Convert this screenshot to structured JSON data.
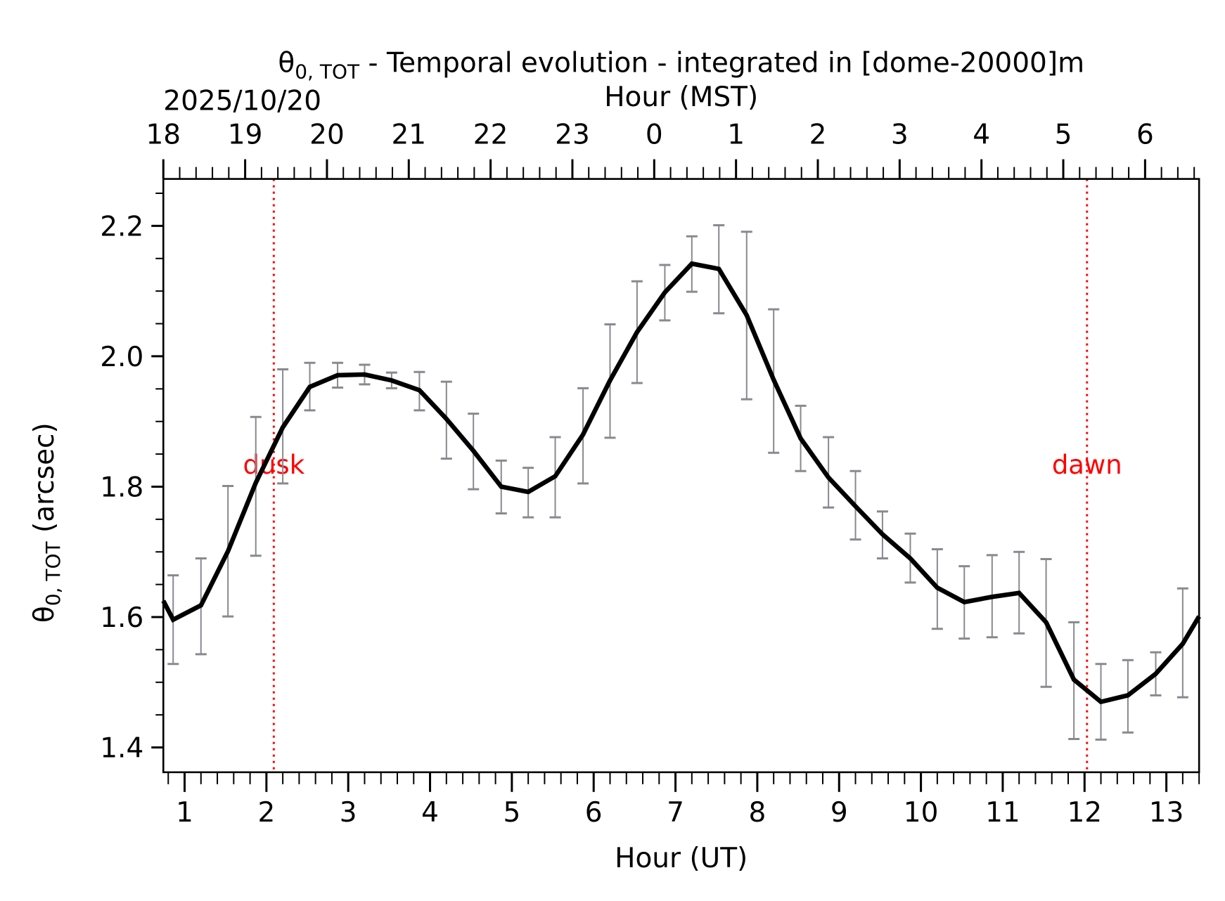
{
  "chart_data": {
    "type": "line",
    "title": "θ0,TOT - Temporal evolution - integrated in [dome-20000]m",
    "title_symbol": "θ",
    "title_subscript": "0, TOT",
    "title_rest": " - Temporal evolution - integrated in [dome-20000]m",
    "date_label": "2025/10/20",
    "xlabel": "Hour (UT)",
    "x2label": "Hour (MST)",
    "ylabel": "θ0,TOT (arcsec)",
    "ylabel_symbol": "θ",
    "ylabel_subscript": "0, TOT",
    "ylabel_rest": " (arcsec)",
    "xlim": [
      0.74,
      13.4
    ],
    "ylim": [
      1.362,
      2.272
    ],
    "x_ticks": [
      1,
      2,
      3,
      4,
      5,
      6,
      7,
      8,
      9,
      10,
      11,
      12,
      13
    ],
    "x_tick_labels": [
      "1",
      "2",
      "3",
      "4",
      "5",
      "6",
      "7",
      "8",
      "9",
      "10",
      "11",
      "12",
      "13"
    ],
    "x2_ticks": [
      0.74,
      1.74,
      2.74,
      3.74,
      4.74,
      5.74,
      6.74,
      7.74,
      8.74,
      9.74,
      10.74,
      11.74,
      12.74
    ],
    "x2_tick_labels": [
      "18",
      "19",
      "20",
      "21",
      "22",
      "23",
      "0",
      "1",
      "2",
      "3",
      "4",
      "5",
      "6"
    ],
    "y_ticks": [
      1.4,
      1.6,
      1.8,
      2.0,
      2.2
    ],
    "y_tick_labels": [
      "1.4",
      "1.6",
      "1.8",
      "2.0",
      "2.2"
    ],
    "grid": false,
    "series": [
      {
        "name": "θ0,TOT",
        "color": "#000000",
        "x": [
          0.74,
          0.86,
          1.2,
          1.53,
          1.87,
          2.2,
          2.53,
          2.87,
          3.2,
          3.53,
          3.87,
          4.2,
          4.53,
          4.87,
          5.2,
          5.53,
          5.87,
          6.2,
          6.53,
          6.87,
          7.2,
          7.53,
          7.87,
          8.2,
          8.53,
          8.87,
          9.2,
          9.53,
          9.87,
          10.2,
          10.53,
          10.87,
          11.2,
          11.53,
          11.87,
          12.2,
          12.53,
          12.87,
          13.2,
          13.4
        ],
        "y": [
          1.625,
          1.596,
          1.618,
          1.701,
          1.806,
          1.891,
          1.953,
          1.971,
          1.972,
          1.963,
          1.948,
          1.904,
          1.855,
          1.8,
          1.792,
          1.816,
          1.88,
          1.963,
          2.037,
          2.098,
          2.142,
          2.134,
          2.063,
          1.964,
          1.874,
          1.814,
          1.77,
          1.727,
          1.69,
          1.645,
          1.623,
          1.631,
          1.637,
          1.592,
          1.504,
          1.47,
          1.48,
          1.513,
          1.559,
          1.601
        ]
      }
    ],
    "error_bars": {
      "color": "#888a8f",
      "x": [
        0.86,
        1.2,
        1.53,
        1.87,
        2.2,
        2.53,
        2.87,
        3.2,
        3.53,
        3.87,
        4.2,
        4.53,
        4.87,
        5.2,
        5.53,
        5.87,
        6.2,
        6.53,
        6.87,
        7.2,
        7.53,
        7.87,
        8.2,
        8.53,
        8.87,
        9.2,
        9.53,
        9.87,
        10.2,
        10.53,
        10.87,
        11.2,
        11.53,
        11.87,
        12.2,
        12.53,
        12.87,
        13.2
      ],
      "upper": [
        1.664,
        1.69,
        1.801,
        1.907,
        1.98,
        1.99,
        1.99,
        1.987,
        1.975,
        1.976,
        1.961,
        1.912,
        1.84,
        1.829,
        1.876,
        1.951,
        2.049,
        2.115,
        2.14,
        2.184,
        2.201,
        2.191,
        2.072,
        1.924,
        1.876,
        1.824,
        1.762,
        1.728,
        1.704,
        1.678,
        1.695,
        1.7,
        1.689,
        1.592,
        1.528,
        1.534,
        1.546,
        1.644
      ],
      "lower": [
        1.528,
        1.543,
        1.601,
        1.694,
        1.805,
        1.917,
        1.952,
        1.957,
        1.951,
        1.917,
        1.843,
        1.796,
        1.759,
        1.753,
        1.753,
        1.805,
        1.875,
        1.959,
        2.055,
        2.099,
        2.066,
        1.934,
        1.852,
        1.824,
        1.768,
        1.719,
        1.69,
        1.653,
        1.582,
        1.567,
        1.569,
        1.575,
        1.493,
        1.413,
        1.412,
        1.423,
        1.48,
        1.477
      ]
    },
    "annotations": [
      {
        "label": "dusk",
        "x": 2.09,
        "color": "#ff0000",
        "text_y": 1.82
      },
      {
        "label": "dawn",
        "x": 12.03,
        "color": "#ff0000",
        "text_y": 1.82
      }
    ]
  }
}
